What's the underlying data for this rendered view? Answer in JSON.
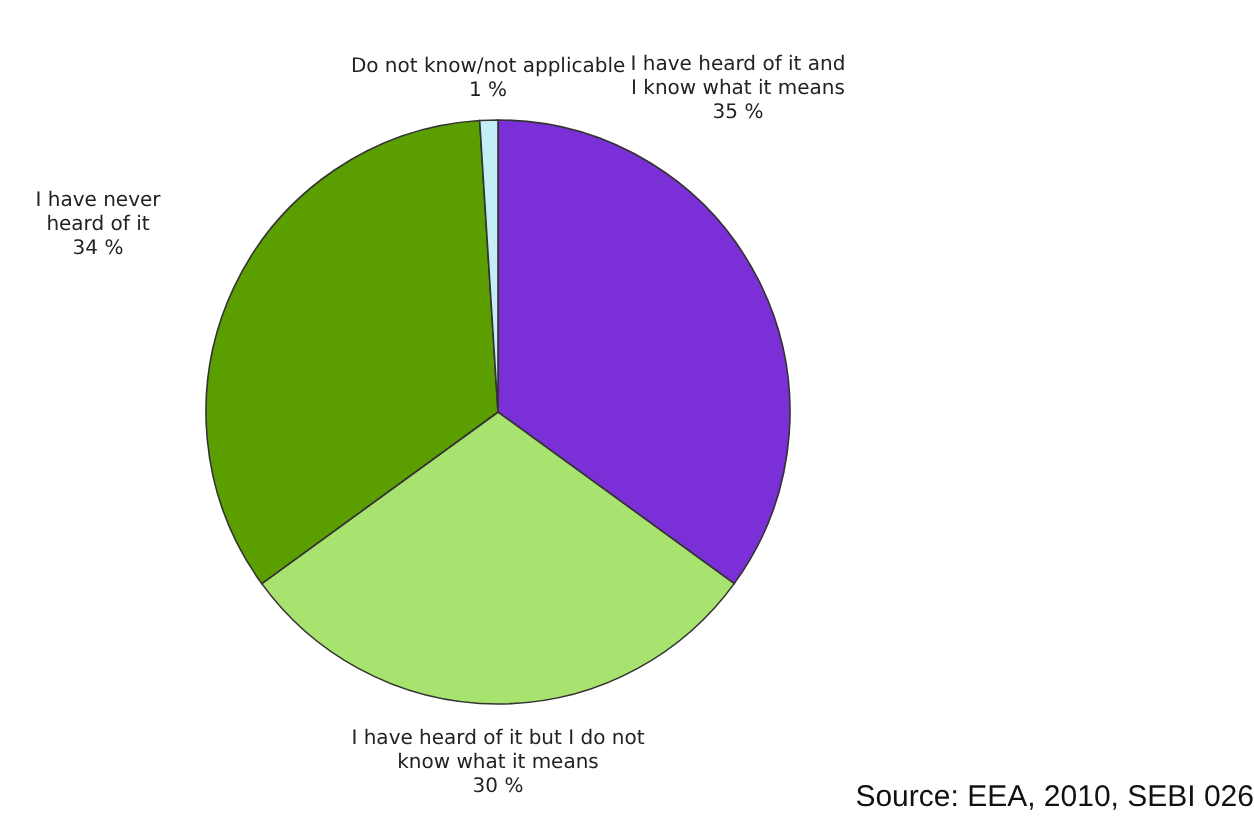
{
  "chart_data": {
    "type": "pie",
    "categories": [
      "I have heard of it and I know what it means",
      "I have heard of it but I do not know what it means",
      "I have never heard of it",
      "Do not know/not applicable"
    ],
    "values": [
      35,
      30,
      34,
      1
    ],
    "value_labels": [
      "35 %",
      "30 %",
      "34 %",
      "1 %"
    ],
    "colors": [
      "#7b2fd6",
      "#a8e26f",
      "#5a9e00",
      "#c4eef5"
    ],
    "legend": false,
    "annotations": [
      "Source: EEA, 2010, SEBI 026"
    ]
  }
}
